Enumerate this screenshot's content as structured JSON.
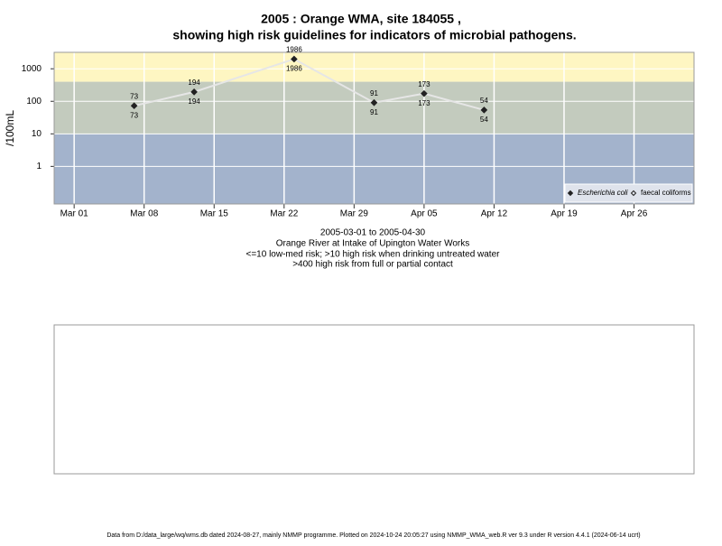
{
  "chart_data": {
    "type": "line",
    "title": [
      "2005 : Orange WMA, site 184055 ,",
      "showing high risk guidelines for indicators of microbial pathogens."
    ],
    "y_label": "/100mL",
    "subtitle": [
      "2005-03-01 to 2005-04-30",
      "Orange River at Intake of Upington Water Works",
      "<=10 low-med risk; >10 high risk when drinking untreated water",
      ">400 high risk from full or partial contact"
    ],
    "footer": "Data from D:/data_large/wq/wms.db dated 2024-08-27, mainly NMMP programme. Plotted on 2024-10-24 20:05:27 using NMMP_WMA_web.R ver 9.3 under R version 4.4.1 (2024-06-14 ucrt)",
    "x": [
      "2005-03-07",
      "2005-03-13",
      "2005-03-23",
      "2005-03-31",
      "2005-04-05",
      "2005-04-11"
    ],
    "series": [
      {
        "name": "Escherichia coli",
        "color": "#222222",
        "line_color": "#e6e6e6",
        "values": [
          73,
          194,
          1986,
          91,
          173,
          54
        ]
      },
      {
        "name": "faecal coliforms",
        "color": "#222222",
        "values": [
          73,
          194,
          1986,
          91,
          173,
          54
        ]
      }
    ],
    "xlim": [
      "2005-02-27",
      "2005-05-02"
    ],
    "xticks": [
      {
        "value": "2005-03-01",
        "label": "Mar 01"
      },
      {
        "value": "2005-03-08",
        "label": "Mar 08"
      },
      {
        "value": "2005-03-15",
        "label": "Mar 15"
      },
      {
        "value": "2005-03-22",
        "label": "Mar 22"
      },
      {
        "value": "2005-03-29",
        "label": "Mar 29"
      },
      {
        "value": "2005-04-05",
        "label": "Apr 05"
      },
      {
        "value": "2005-04-12",
        "label": "Apr 12"
      },
      {
        "value": "2005-04-19",
        "label": "Apr 19"
      },
      {
        "value": "2005-04-26",
        "label": "Apr 26"
      }
    ],
    "ylim": [
      0.07,
      3200
    ],
    "yticks": [
      1,
      10,
      100,
      1000
    ],
    "log_y": true,
    "grid": true,
    "thresholds": [
      10,
      400
    ],
    "band_colors": [
      "#a3b3cc",
      "#c3cbbe",
      "#fef6c2"
    ],
    "legend": "bottom-right"
  }
}
